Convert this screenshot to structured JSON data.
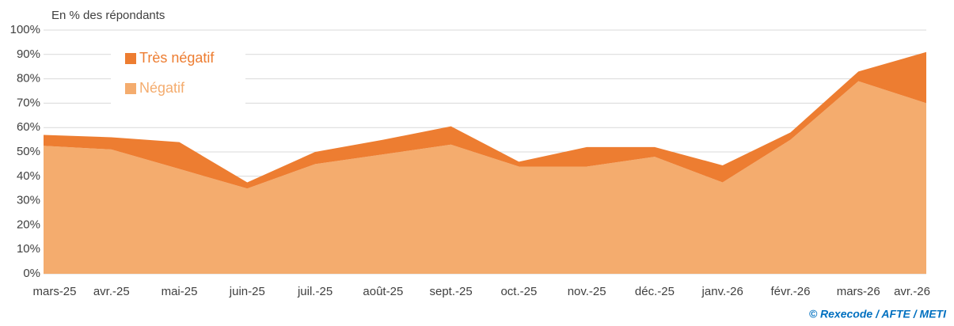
{
  "chart_data": {
    "type": "stacked_area",
    "y_axis_label": "En % des répondants",
    "source": "© Rexecode / AFTE / METI",
    "categories": [
      "mars-25",
      "avr.-25",
      "mai-25",
      "juin-25",
      "juil.-25",
      "août-25",
      "sept.-25",
      "oct.-25",
      "nov.-25",
      "déc.-25",
      "janv.-26",
      "févr.-26",
      "mars-26",
      "avr.-26"
    ],
    "series": [
      {
        "name": "Négatif",
        "color": "#f4ac6e",
        "values": [
          52.5,
          51,
          43,
          35,
          45,
          49,
          53,
          44,
          44,
          48,
          37.5,
          55,
          79,
          70
        ]
      },
      {
        "name": "Très négatif",
        "color": "#ed7d31",
        "values": [
          4.5,
          5,
          11,
          2.5,
          5,
          6,
          7.5,
          2,
          8,
          4,
          7,
          3,
          4,
          21
        ]
      }
    ],
    "ylim": [
      0,
      100
    ],
    "yticks": [
      {
        "value": 0,
        "label": "0%"
      },
      {
        "value": 10,
        "label": "10%"
      },
      {
        "value": 20,
        "label": "20%"
      },
      {
        "value": 30,
        "label": "30%"
      },
      {
        "value": 40,
        "label": "40%"
      },
      {
        "value": 50,
        "label": "50%"
      },
      {
        "value": 60,
        "label": "60%"
      },
      {
        "value": 70,
        "label": "70%"
      },
      {
        "value": 80,
        "label": "80%"
      },
      {
        "value": 90,
        "label": "90%"
      },
      {
        "value": 100,
        "label": "100%"
      }
    ],
    "grid": true,
    "legend": "top-left"
  }
}
